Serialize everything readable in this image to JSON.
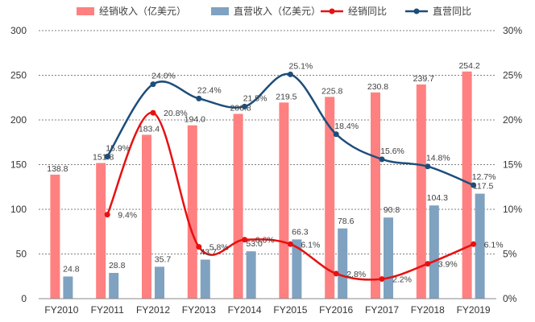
{
  "chart_data": {
    "type": "bar+line",
    "categories": [
      "FY2010",
      "FY2011",
      "FY2012",
      "FY2013",
      "FY2014",
      "FY2015",
      "FY2016",
      "FY2017",
      "FY2018",
      "FY2019"
    ],
    "bar_series": [
      {
        "name": "经销收入（亿美元）",
        "color": "#ff8080",
        "values": [
          138.8,
          151.8,
          183.4,
          194.0,
          206.8,
          219.5,
          225.8,
          230.8,
          239.7,
          254.2
        ],
        "labels": [
          "138.8",
          "151.8",
          "183.4",
          "194.0",
          "206.8",
          "219.5",
          "225.8",
          "230.8",
          "239.7",
          "254.2"
        ]
      },
      {
        "name": "直营收入（亿美元）",
        "color": "#7fa2c0",
        "values": [
          24.8,
          28.8,
          35.7,
          43.7,
          53.0,
          66.3,
          78.6,
          90.8,
          104.3,
          117.5
        ],
        "labels": [
          "24.8",
          "28.8",
          "35.7",
          "43.7",
          "53.0",
          "66.3",
          "78.6",
          "90.8",
          "104.3",
          "117.5"
        ]
      }
    ],
    "line_series": [
      {
        "name": "经销同比",
        "color": "#e81010",
        "values": [
          null,
          9.4,
          20.8,
          5.8,
          6.6,
          6.1,
          2.8,
          2.2,
          3.9,
          6.1
        ],
        "labels": [
          "",
          "9.4%",
          "20.8%",
          "5.8%",
          "6.6%",
          "6.1%",
          "2.8%",
          "2.2%",
          "3.9%",
          "6.1%"
        ]
      },
      {
        "name": "直营同比",
        "color": "#1d4e7a",
        "values": [
          null,
          15.9,
          24.0,
          22.4,
          21.5,
          25.1,
          18.4,
          15.6,
          14.8,
          12.7
        ],
        "labels": [
          "",
          "15.9%",
          "24.0%",
          "22.4%",
          "21.5%",
          "25.1%",
          "18.4%",
          "15.6%",
          "14.8%",
          "12.7%"
        ]
      }
    ],
    "y_left": {
      "min": 0,
      "max": 300,
      "ticks": [
        "0",
        "50",
        "100",
        "150",
        "200",
        "250",
        "300"
      ]
    },
    "y_right": {
      "min": 0,
      "max": 30,
      "ticks": [
        "0%",
        "5%",
        "10%",
        "15%",
        "20%",
        "25%",
        "30%"
      ]
    },
    "grid": true,
    "legend_position": "top"
  }
}
